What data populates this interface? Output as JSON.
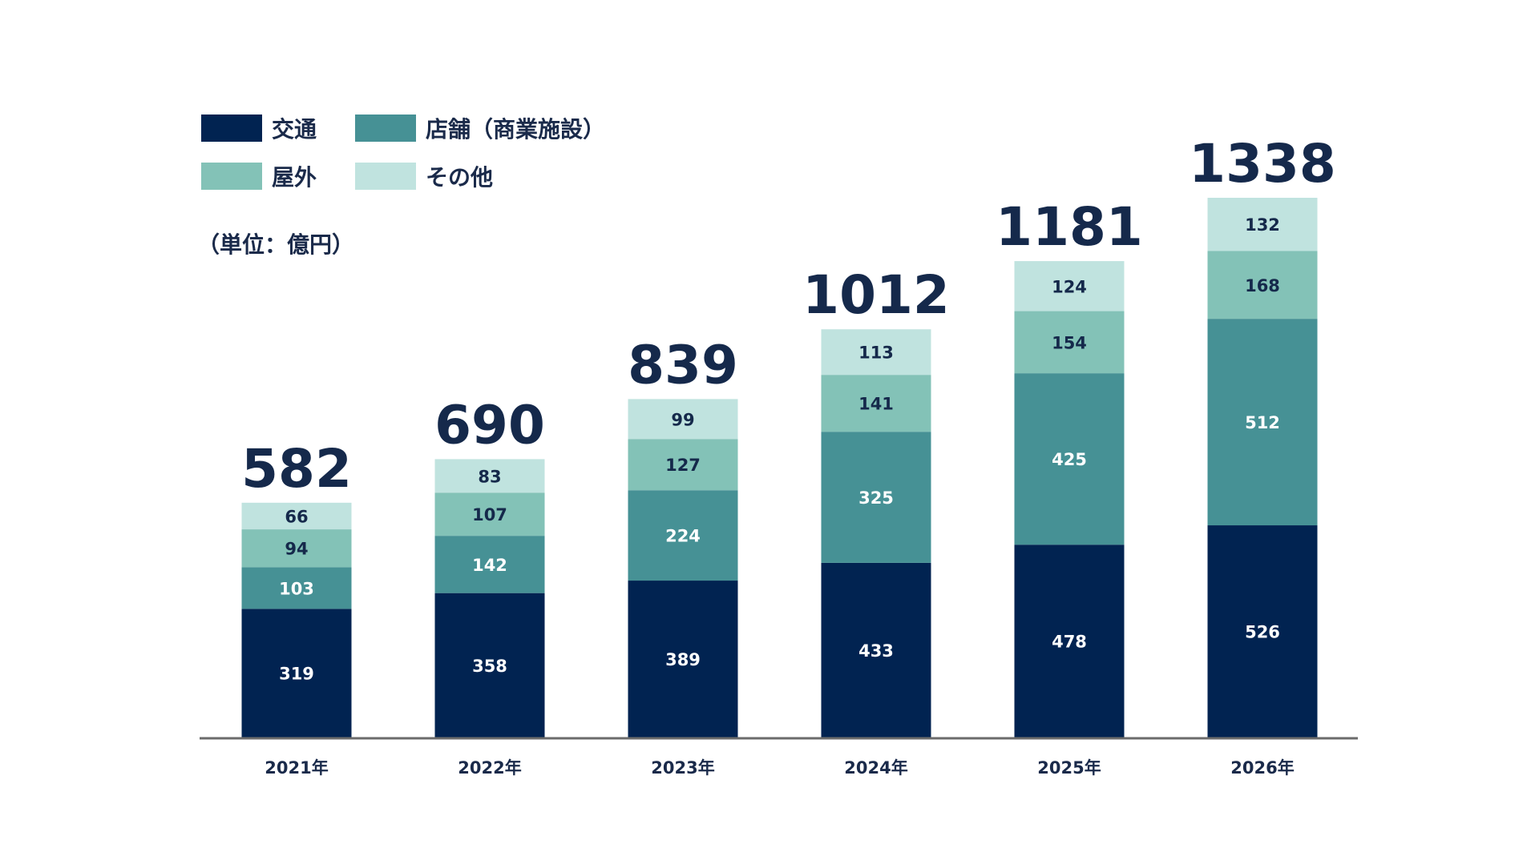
{
  "chart_data": {
    "type": "bar",
    "stacked": true,
    "unit_label": "（単位：億円）",
    "legend_placement": "top-left",
    "grid": false,
    "categories": [
      "2021年",
      "2022年",
      "2023年",
      "2024年",
      "2025年",
      "2026年"
    ],
    "series": [
      {
        "name": "交通",
        "color": "#012351",
        "label_color": "#ffffff",
        "values": [
          319,
          358,
          389,
          433,
          478,
          526
        ]
      },
      {
        "name": "店舗（商業施設）",
        "color": "#469195",
        "label_color": "#ffffff",
        "values": [
          103,
          142,
          224,
          325,
          425,
          512
        ]
      },
      {
        "name": "屋外",
        "color": "#83c2b7",
        "label_color": "#15294b",
        "values": [
          94,
          107,
          127,
          141,
          154,
          168
        ]
      },
      {
        "name": "その他",
        "color": "#c0e3df",
        "label_color": "#15294b",
        "values": [
          66,
          83,
          99,
          113,
          124,
          132
        ]
      }
    ],
    "totals": [
      582,
      690,
      839,
      1012,
      1181,
      1338
    ],
    "ylim": [
      0,
      1338
    ]
  }
}
